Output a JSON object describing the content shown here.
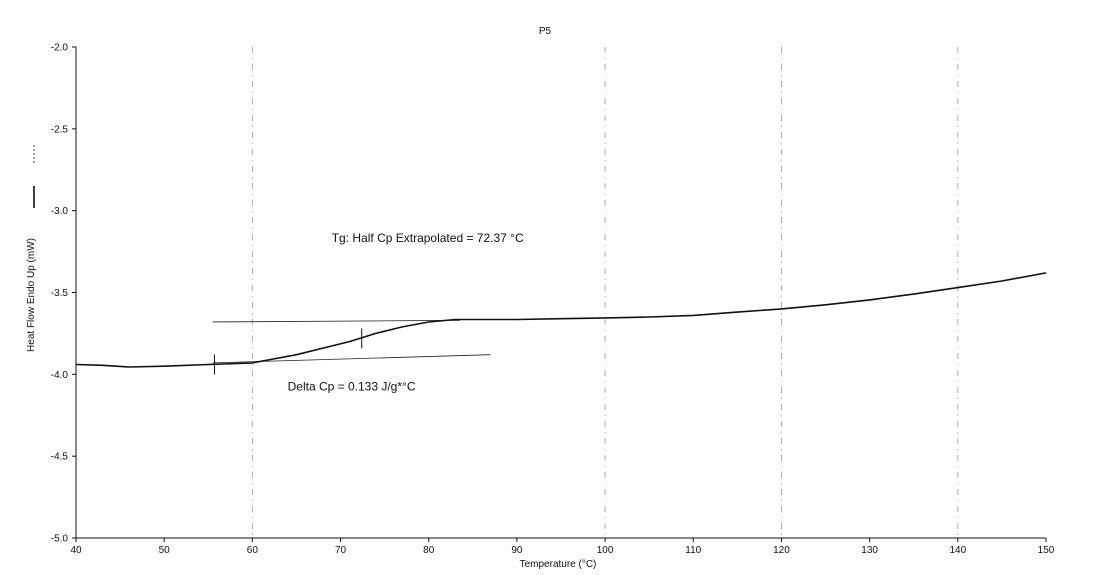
{
  "chart_data": {
    "type": "line",
    "title": "P5",
    "xlabel": "Temperature (°C)",
    "ylabel": "Heat Flow Endo Up (mW)",
    "xlim": [
      40,
      150
    ],
    "ylim": [
      -5.0,
      -2.0
    ],
    "x_ticks": [
      40,
      50,
      60,
      70,
      80,
      90,
      100,
      110,
      120,
      130,
      140,
      150
    ],
    "x_tick_labels": [
      "40",
      "50",
      "60",
      "70",
      "80",
      "90",
      "100",
      "110",
      "120",
      "130",
      "140",
      "150"
    ],
    "y_ticks": [
      -2.0,
      -2.5,
      -3.0,
      -3.5,
      -4.0,
      -4.5,
      -5.0
    ],
    "y_tick_labels": [
      "-2.0",
      "-2.5",
      "-3.0",
      "-3.5",
      "-4.0",
      "-4.5",
      "-5.0"
    ],
    "grid": false,
    "series": [
      {
        "x": [
          40,
          43,
          46,
          50,
          55,
          60,
          62,
          65,
          68,
          71,
          74,
          77,
          80,
          83,
          86,
          90,
          95,
          100,
          105,
          110,
          115,
          120,
          125,
          130,
          135,
          140,
          145,
          150
        ],
        "y": [
          -3.94,
          -3.945,
          -3.955,
          -3.95,
          -3.94,
          -3.93,
          -3.91,
          -3.88,
          -3.84,
          -3.8,
          -3.75,
          -3.71,
          -3.68,
          -3.665,
          -3.665,
          -3.665,
          -3.66,
          -3.655,
          -3.65,
          -3.64,
          -3.62,
          -3.6,
          -3.575,
          -3.545,
          -3.51,
          -3.47,
          -3.43,
          -3.38
        ],
        "color": "#111111"
      }
    ],
    "tangent_lines": [
      {
        "x": [
          55.5,
          83.5
        ],
        "y": [
          -3.68,
          -3.67
        ]
      },
      {
        "x": [
          55.5,
          87
        ],
        "y": [
          -3.93,
          -3.88
        ]
      }
    ],
    "markers": [
      {
        "x": 55.7,
        "y": -3.94
      },
      {
        "x": 72.4,
        "y": -3.78
      }
    ],
    "annotations": [
      {
        "text": "Tg: Half Cp Extrapolated = 72.37 °C",
        "x": 69,
        "y": -3.19
      },
      {
        "text": "Delta Cp = 0.133 J/g*°C",
        "x": 64,
        "y": -4.1
      }
    ]
  }
}
